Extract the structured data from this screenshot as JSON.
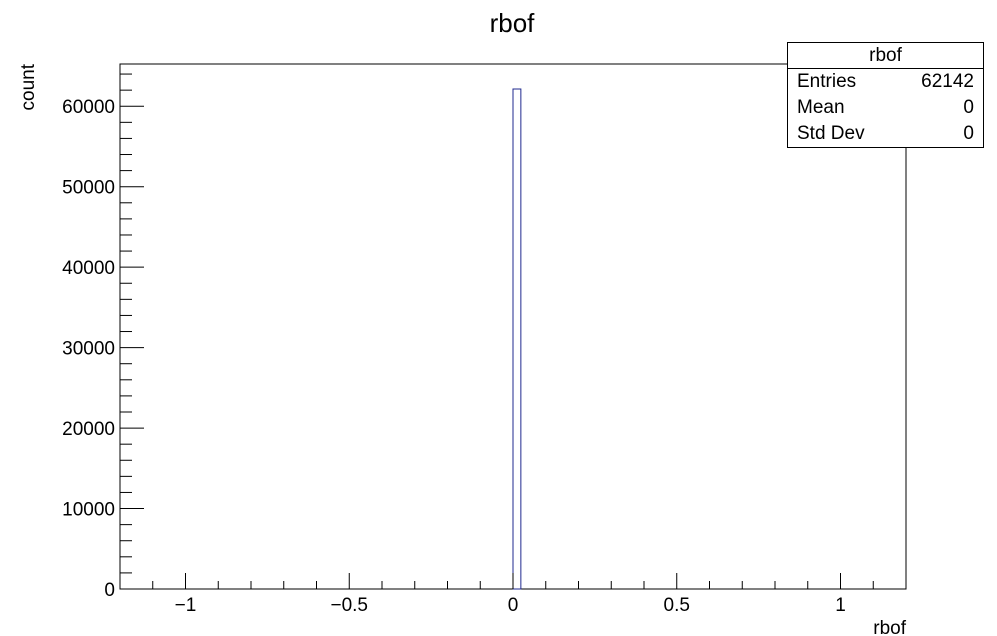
{
  "chart_data": {
    "type": "bar",
    "title": "rbof",
    "xlabel": "rbof",
    "ylabel": "count",
    "xlim": [
      -1.2,
      1.2
    ],
    "ylim": [
      0,
      65250
    ],
    "x_ticks": [
      "−1",
      "−0.5",
      "0",
      "0.5",
      "1"
    ],
    "x_tick_values": [
      -1,
      -0.5,
      0,
      0.5,
      1
    ],
    "y_ticks": [
      "0",
      "10000",
      "20000",
      "30000",
      "40000",
      "50000",
      "60000"
    ],
    "y_tick_values": [
      0,
      10000,
      20000,
      30000,
      40000,
      50000,
      60000
    ],
    "bins": [
      {
        "x0": 0.0,
        "x1": 0.024,
        "count": 62142
      }
    ],
    "bar_color": "#1f2a8f",
    "grid": false,
    "legend": "none"
  },
  "stats": {
    "title": "rbof",
    "rows": [
      {
        "label": "Entries",
        "value": "62142"
      },
      {
        "label": "Mean",
        "value": "0"
      },
      {
        "label": "Std Dev",
        "value": "0"
      }
    ]
  }
}
